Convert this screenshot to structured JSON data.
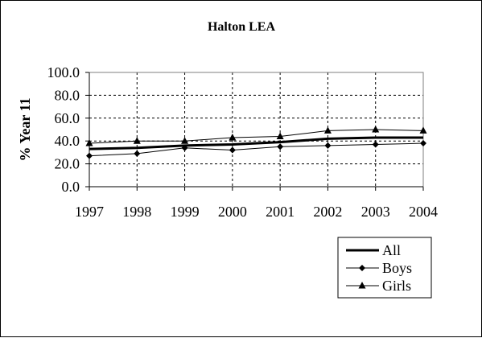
{
  "chart_data": {
    "type": "line",
    "title": "Halton LEA",
    "ylabel": "% Year 11",
    "xlabel": "",
    "x": [
      "1997",
      "1998",
      "1999",
      "2000",
      "2001",
      "2002",
      "2003",
      "2004"
    ],
    "yticks": [
      "0.0",
      "20.0",
      "40.0",
      "60.0",
      "80.0",
      "100.0"
    ],
    "ylim": [
      0,
      100
    ],
    "grid": true,
    "legend_position": "bottom-right",
    "series": [
      {
        "name": "All",
        "values": [
          33,
          34,
          36,
          37,
          39,
          42,
          43,
          43
        ],
        "marker": "none",
        "color": "#000000"
      },
      {
        "name": "Boys",
        "values": [
          27,
          29,
          34,
          32,
          35,
          36,
          37,
          38
        ],
        "marker": "diamond",
        "color": "#000000"
      },
      {
        "name": "Girls",
        "values": [
          38,
          40,
          40,
          43,
          44,
          49,
          50,
          49
        ],
        "marker": "triangle",
        "color": "#000000"
      }
    ]
  }
}
